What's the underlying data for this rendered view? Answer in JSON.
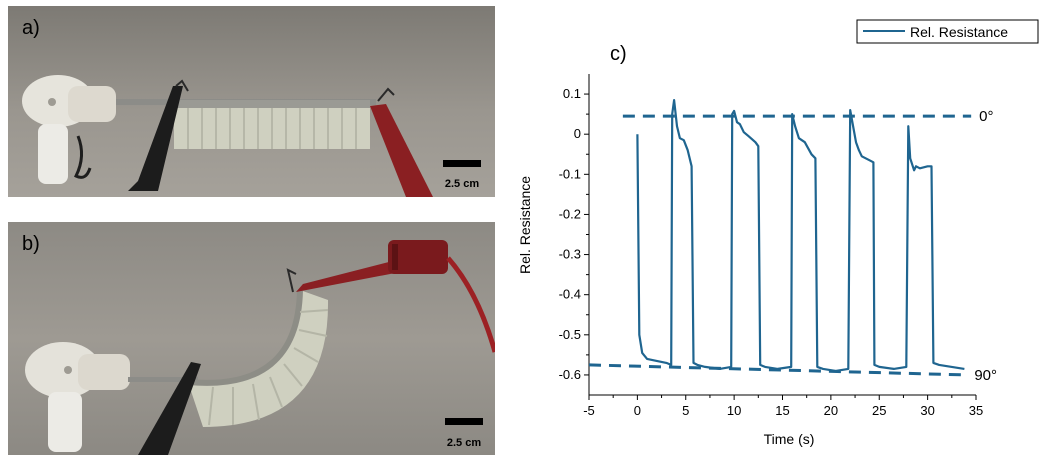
{
  "panels": {
    "a": {
      "label": "a)",
      "scale_bar": "2.5 cm"
    },
    "b": {
      "label": "b)",
      "scale_bar": "2.5 cm"
    },
    "c": {
      "label": "c)"
    }
  },
  "colors": {
    "series": "#1f6590",
    "ref_line": "#1f6590",
    "photo_bg": "#8f8b84",
    "probe_black": "#1c1c1c",
    "probe_red": "#8a1f22",
    "actuator": "#d2d3c4"
  },
  "chart_data": {
    "type": "line",
    "title": "",
    "xlabel": "Time (s)",
    "ylabel": "Rel. Resistance",
    "xlim": [
      -5,
      35
    ],
    "ylim": [
      -0.65,
      0.15
    ],
    "xticks": [
      -5,
      0,
      5,
      10,
      15,
      20,
      25,
      30,
      35
    ],
    "yticks": [
      0.1,
      0,
      -0.1,
      -0.2,
      -0.3,
      -0.4,
      -0.5,
      -0.6
    ],
    "yticklabels": [
      "0.1",
      "0",
      "-0.1",
      "-0.2",
      "-0.3",
      "-0.4",
      "-0.5",
      "-0.6"
    ],
    "legend": {
      "position": "top-right",
      "entries": [
        "Rel. Resistance"
      ]
    },
    "grid": false,
    "series": [
      {
        "name": "Rel. Resistance",
        "x": [
          0,
          0.2,
          0.5,
          1,
          2,
          3,
          3.5,
          3.6,
          3.8,
          4.1,
          4.4,
          4.8,
          5.2,
          5.6,
          5.8,
          6.2,
          7,
          8.5,
          9.7,
          9.8,
          10.0,
          10.3,
          10.6,
          11.0,
          11.5,
          12.2,
          12.5,
          12.7,
          13.2,
          14.5,
          15.9,
          16.0,
          16.3,
          16.7,
          17.3,
          18.0,
          18.4,
          18.6,
          19.2,
          20.5,
          21.8,
          22.0,
          22.3,
          22.6,
          22.9,
          23.2,
          24.0,
          24.4,
          24.5,
          25.0,
          26.5,
          27.8,
          28.0,
          28.2,
          28.6,
          28.8,
          29.2,
          30.0,
          30.4,
          30.6,
          31.2,
          32.5,
          33.8
        ],
        "y": [
          0.0,
          -0.5,
          -0.545,
          -0.56,
          -0.565,
          -0.57,
          -0.575,
          0.05,
          0.085,
          0.02,
          -0.01,
          -0.015,
          -0.04,
          -0.08,
          -0.57,
          -0.575,
          -0.58,
          -0.585,
          -0.58,
          0.05,
          0.058,
          0.03,
          0.025,
          0.005,
          -0.005,
          -0.02,
          -0.03,
          -0.575,
          -0.58,
          -0.585,
          -0.58,
          0.05,
          0.02,
          -0.01,
          -0.02,
          -0.05,
          -0.06,
          -0.58,
          -0.585,
          -0.59,
          -0.585,
          0.06,
          0.02,
          -0.02,
          -0.04,
          -0.055,
          -0.065,
          -0.07,
          -0.575,
          -0.58,
          -0.585,
          -0.58,
          0.02,
          -0.06,
          -0.09,
          -0.08,
          -0.085,
          -0.08,
          -0.08,
          -0.57,
          -0.575,
          -0.58,
          -0.585
        ]
      }
    ],
    "reference_lines": [
      {
        "label": "0°",
        "x": [
          -1.5,
          34.5
        ],
        "y": [
          0.045,
          0.045
        ]
      },
      {
        "label": "90°",
        "x": [
          -5,
          34
        ],
        "y": [
          -0.575,
          -0.6
        ]
      }
    ]
  }
}
